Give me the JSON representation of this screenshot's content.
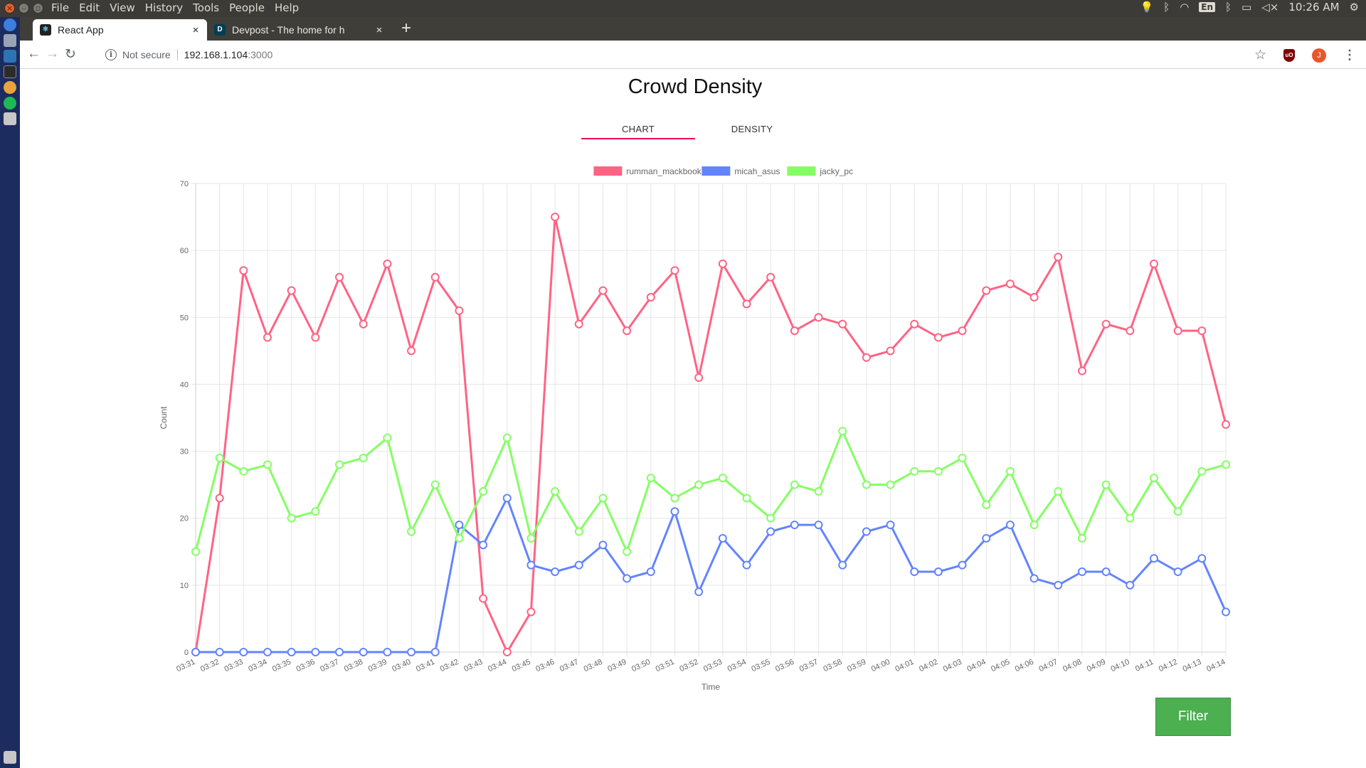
{
  "system": {
    "menus": [
      "File",
      "Edit",
      "View",
      "History",
      "Tools",
      "People",
      "Help"
    ],
    "lang": "En",
    "clock": "10:26 AM"
  },
  "browser": {
    "tabs": [
      {
        "title": "React App",
        "active": true
      },
      {
        "title": "Devpost - The home for h",
        "active": false
      }
    ],
    "security_label": "Not secure",
    "url_host": "192.168.1.104",
    "url_port": ":3000",
    "profile_initial": "J",
    "ublock_label": "uO"
  },
  "page": {
    "title": "Crowd Density",
    "nav_tabs": [
      "CHART",
      "DENSITY"
    ],
    "active_tab": "CHART",
    "filter_label": "Filter"
  },
  "chart_data": {
    "type": "line",
    "xlabel": "Time",
    "ylabel": "Count",
    "ylim": [
      0,
      70
    ],
    "yticks": [
      0,
      10,
      20,
      30,
      40,
      50,
      60,
      70
    ],
    "grid": true,
    "legend_position": "top",
    "categories": [
      "03:31",
      "03:32",
      "03:33",
      "03:34",
      "03:35",
      "03:36",
      "03:37",
      "03:38",
      "03:39",
      "03:40",
      "03:41",
      "03:42",
      "03:43",
      "03:44",
      "03:45",
      "03:46",
      "03:47",
      "03:48",
      "03:49",
      "03:50",
      "03:51",
      "03:52",
      "03:53",
      "03:54",
      "03:55",
      "03:56",
      "03:57",
      "03:58",
      "03:59",
      "04:00",
      "04:01",
      "04:02",
      "04:03",
      "04:04",
      "04:05",
      "04:06",
      "04:07",
      "04:08",
      "04:09",
      "04:10",
      "04:11",
      "04:12",
      "04:13",
      "04:14"
    ],
    "series": [
      {
        "name": "rumman_mackbook",
        "color": "#ff6384",
        "values": [
          0,
          23,
          57,
          47,
          54,
          47,
          56,
          49,
          58,
          45,
          56,
          51,
          8,
          0,
          6,
          65,
          49,
          54,
          48,
          53,
          57,
          41,
          58,
          52,
          56,
          48,
          50,
          49,
          44,
          45,
          49,
          47,
          48,
          54,
          55,
          53,
          59,
          42,
          49,
          48,
          58,
          48,
          48,
          34
        ]
      },
      {
        "name": "micah_asus",
        "color": "#6384ff",
        "values": [
          0,
          0,
          0,
          0,
          0,
          0,
          0,
          0,
          0,
          0,
          0,
          19,
          16,
          23,
          13,
          12,
          13,
          16,
          11,
          12,
          21,
          9,
          17,
          13,
          18,
          19,
          19,
          13,
          18,
          19,
          12,
          12,
          13,
          17,
          19,
          11,
          10,
          12,
          12,
          10,
          14,
          12,
          14,
          6
        ]
      },
      {
        "name": "jacky_pc",
        "color": "#84ff63",
        "values": [
          15,
          29,
          27,
          28,
          20,
          21,
          28,
          29,
          32,
          18,
          25,
          17,
          24,
          32,
          17,
          24,
          18,
          23,
          15,
          26,
          23,
          25,
          26,
          23,
          20,
          25,
          24,
          33,
          25,
          25,
          27,
          27,
          29,
          22,
          27,
          19,
          24,
          17,
          25,
          20,
          26,
          21,
          27,
          28
        ]
      }
    ]
  }
}
